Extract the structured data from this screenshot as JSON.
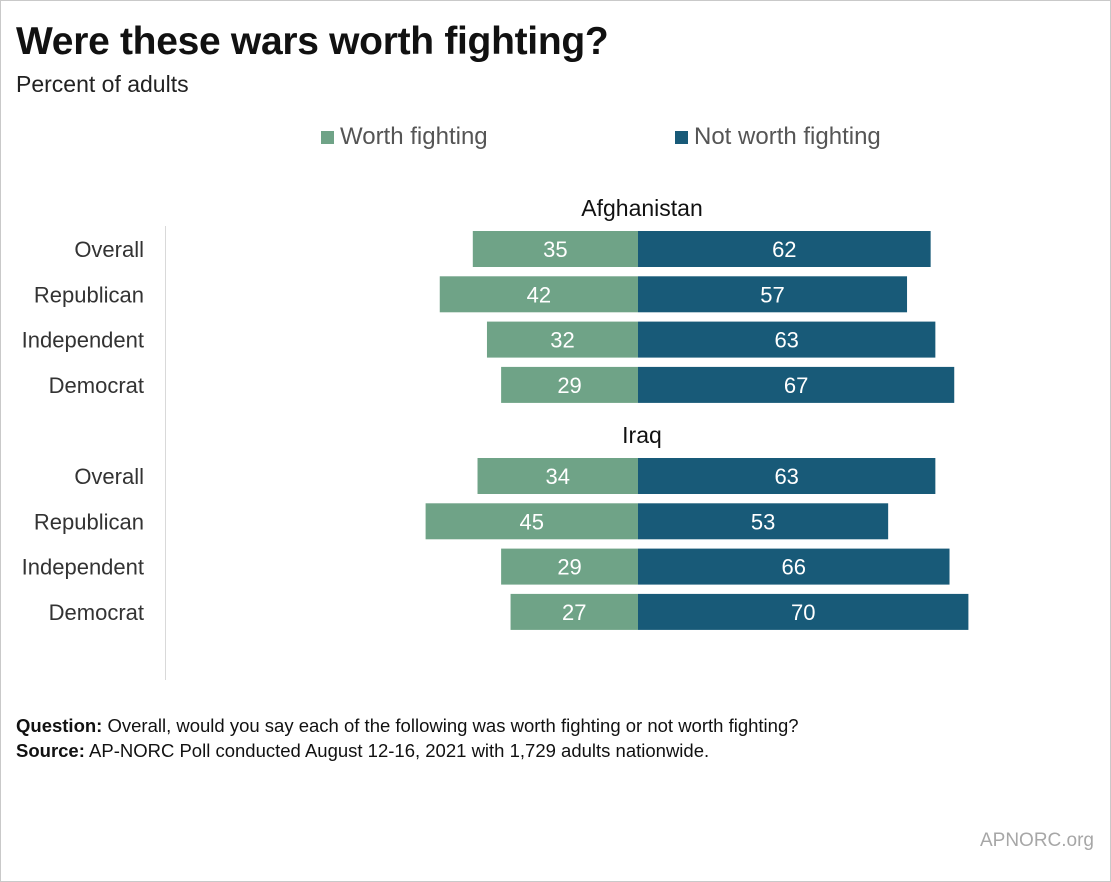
{
  "title": "Were these wars worth fighting?",
  "subtitle": "Percent of adults",
  "legend": [
    {
      "label": "Worth fighting",
      "color": "#6fa387"
    },
    {
      "label": "Not worth fighting",
      "color": "#185a78"
    }
  ],
  "chart_data": {
    "type": "bar",
    "orientation": "horizontal-diverging",
    "unit": "percent",
    "groups": [
      {
        "name": "Afghanistan",
        "categories": [
          "Overall",
          "Republican",
          "Independent",
          "Democrat"
        ],
        "series": [
          {
            "name": "Worth fighting",
            "values": [
              35,
              42,
              32,
              29
            ]
          },
          {
            "name": "Not worth fighting",
            "values": [
              62,
              57,
              63,
              67
            ]
          }
        ]
      },
      {
        "name": "Iraq",
        "categories": [
          "Overall",
          "Republican",
          "Independent",
          "Democrat"
        ],
        "series": [
          {
            "name": "Worth fighting",
            "values": [
              34,
              45,
              29,
              27
            ]
          },
          {
            "name": "Not worth fighting",
            "values": [
              63,
              53,
              66,
              70
            ]
          }
        ]
      }
    ],
    "grid": false,
    "legend_position": "top"
  },
  "footer": {
    "question_label": "Question:",
    "question_text": " Overall, would you say each of the following was worth fighting or not worth fighting?",
    "source_label": "Source:",
    "source_text": " AP-NORC Poll conducted August 12-16, 2021 with 1,729 adults nationwide."
  },
  "brand": "APNORC.org"
}
